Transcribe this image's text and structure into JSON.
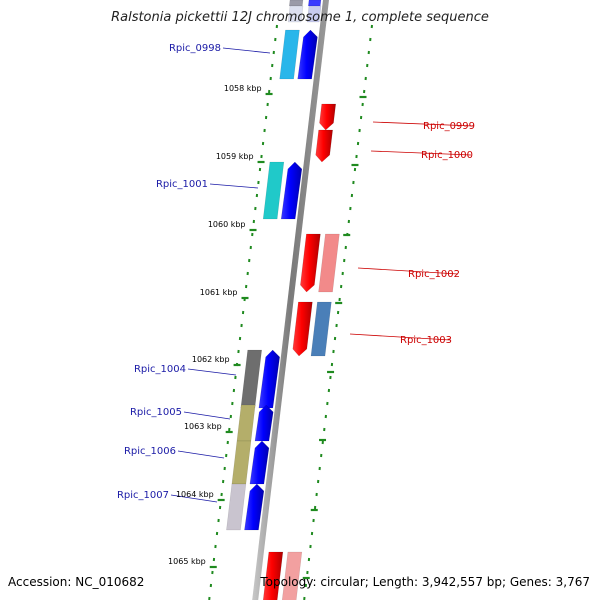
{
  "title": "Ralstonia pickettii 12J chromosome 1, complete sequence",
  "footer": {
    "accession": "Accession: NC_010682",
    "topology": "Topology: circular; Length: 3,942,557 bp; Genes: 3,767"
  },
  "colors": {
    "backbone": "#888888",
    "tick": "#1f8a1f",
    "left_label": "#1a1aa6",
    "right_label": "#cc0000",
    "forward_gene": "#0000ff",
    "reverse_gene": "#ff0000"
  },
  "kbp_ticks": [
    "1058 kbp",
    "1059 kbp",
    "1060 kbp",
    "1061 kbp",
    "1062 kbp",
    "1063 kbp",
    "1064 kbp",
    "1065 kbp"
  ],
  "genes_left": [
    {
      "label": "Rpic_0998",
      "cog_color": "#29b6ea"
    },
    {
      "label": "Rpic_1001",
      "cog_color": "#20c9c9"
    },
    {
      "label": "Rpic_1004",
      "cog_color": "#6e6e6e"
    },
    {
      "label": "Rpic_1005",
      "cog_color": "#b4ae6a"
    },
    {
      "label": "Rpic_1006",
      "cog_color": "#b4ae6a"
    },
    {
      "label": "Rpic_1007",
      "cog_color": "#c9c4cf"
    }
  ],
  "genes_right": [
    {
      "label": "Rpic_0999",
      "cog_color": ""
    },
    {
      "label": "Rpic_1000",
      "cog_color": ""
    },
    {
      "label": "Rpic_1002",
      "cog_color": "#f28a8a"
    },
    {
      "label": "Rpic_1003",
      "cog_color": "#4a7fb8"
    }
  ]
}
